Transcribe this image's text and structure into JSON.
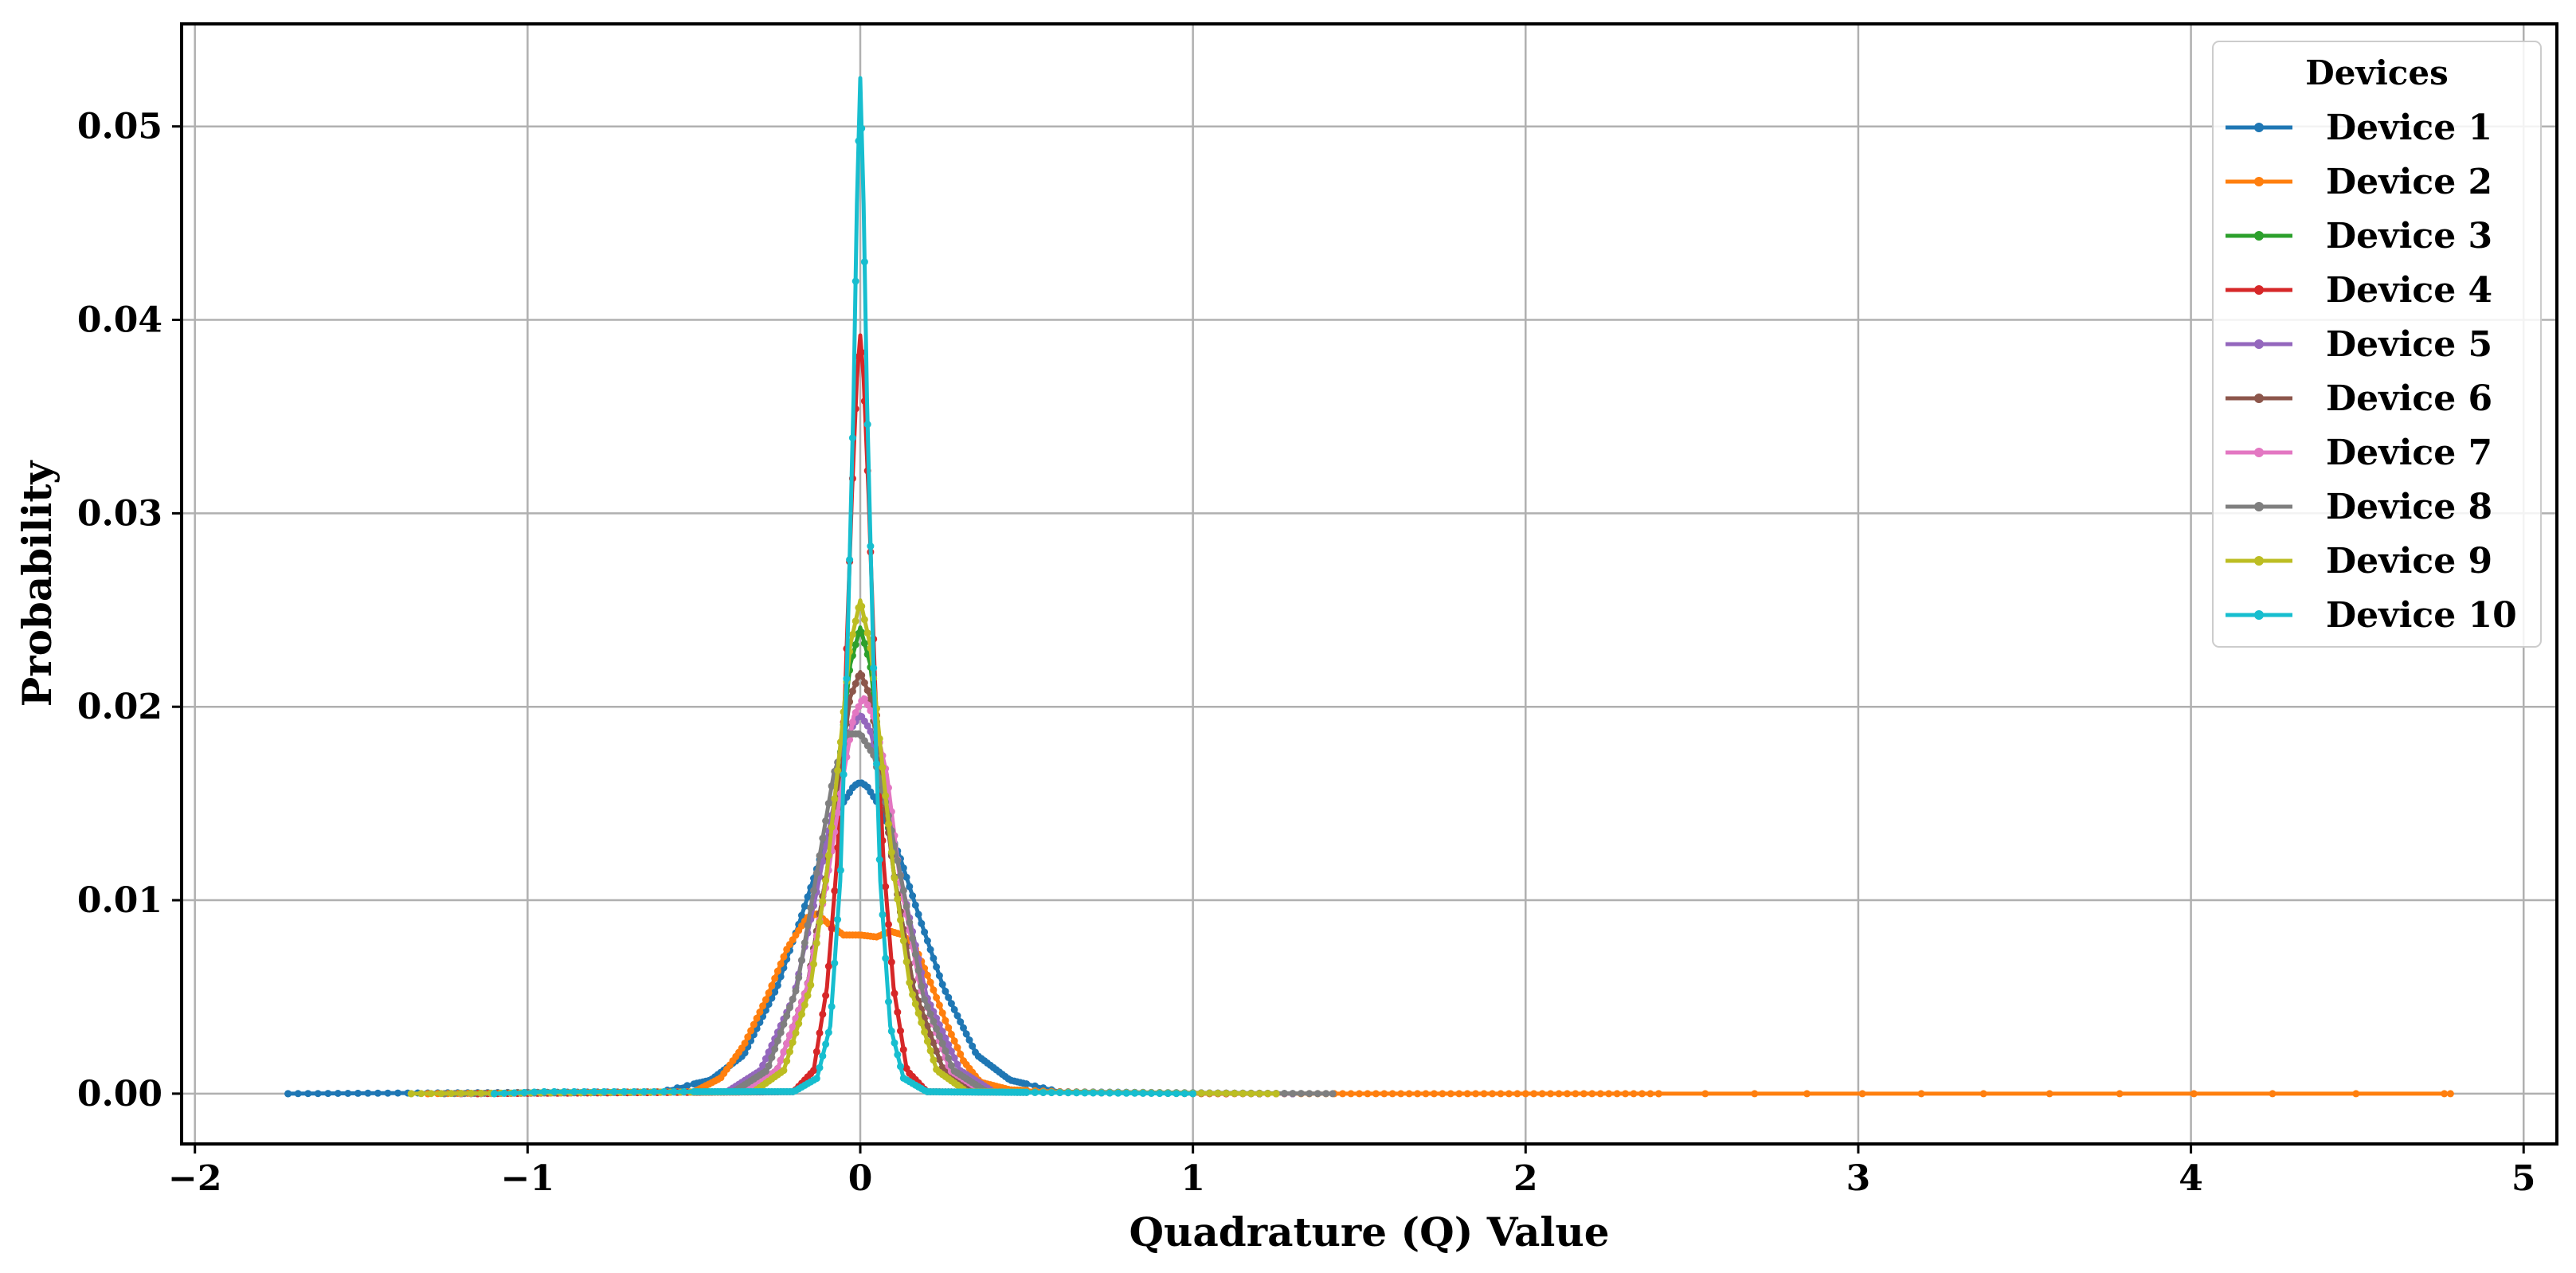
{
  "chart_data": {
    "type": "line",
    "xlabel": "Quadrature (Q) Value",
    "ylabel": "Probability",
    "xlim": [
      -2.04,
      5.1
    ],
    "ylim": [
      -0.0026,
      0.0553
    ],
    "xticks": [
      -2,
      -1,
      0,
      1,
      2,
      3,
      4,
      5
    ],
    "xtick_labels": [
      "−2",
      "−1",
      "0",
      "1",
      "2",
      "3",
      "4",
      "5"
    ],
    "yticks": [
      0.0,
      0.01,
      0.02,
      0.03,
      0.04,
      0.05
    ],
    "ytick_labels": [
      "0.00",
      "0.01",
      "0.02",
      "0.03",
      "0.04",
      "0.05"
    ],
    "grid": true,
    "legend": {
      "title": "Devices",
      "placement": "top-right"
    },
    "series": [
      {
        "name": "Device 1",
        "color": "#1f77b4",
        "x_range": [
          -1.72,
          1.3
        ],
        "points": [
          [
            -1.72,
            0
          ],
          [
            -0.6,
            0.0001
          ],
          [
            -0.45,
            0.0007
          ],
          [
            -0.35,
            0.002
          ],
          [
            -0.25,
            0.0055
          ],
          [
            -0.18,
            0.009
          ],
          [
            -0.12,
            0.0122
          ],
          [
            -0.06,
            0.0148
          ],
          [
            -0.02,
            0.0159
          ],
          [
            0,
            0.0161
          ],
          [
            0.02,
            0.0159
          ],
          [
            0.06,
            0.0148
          ],
          [
            0.12,
            0.0122
          ],
          [
            0.18,
            0.009
          ],
          [
            0.25,
            0.0055
          ],
          [
            0.35,
            0.002
          ],
          [
            0.45,
            0.0007
          ],
          [
            0.6,
            0.0001
          ],
          [
            1.3,
            0
          ]
        ]
      },
      {
        "name": "Device 2",
        "color": "#ff7f0e",
        "x_range": [
          -1.3,
          4.78
        ],
        "points": [
          [
            -1.3,
            0
          ],
          [
            -0.5,
            0.0001
          ],
          [
            -0.42,
            0.0008
          ],
          [
            -0.35,
            0.0025
          ],
          [
            -0.28,
            0.005
          ],
          [
            -0.22,
            0.0075
          ],
          [
            -0.16,
            0.0091
          ],
          [
            -0.13,
            0.0093
          ],
          [
            -0.09,
            0.0087
          ],
          [
            -0.05,
            0.0082
          ],
          [
            0,
            0.0082
          ],
          [
            0.05,
            0.0081
          ],
          [
            0.09,
            0.0084
          ],
          [
            0.13,
            0.0082
          ],
          [
            0.17,
            0.0074
          ],
          [
            0.21,
            0.0058
          ],
          [
            0.26,
            0.0036
          ],
          [
            0.31,
            0.0017
          ],
          [
            0.36,
            0.0006
          ],
          [
            0.45,
            0.0002
          ],
          [
            0.6,
            0.0001
          ],
          [
            1.0,
            0
          ],
          [
            4.78,
            0
          ]
        ]
      },
      {
        "name": "Device 3",
        "color": "#2ca02c",
        "x_range": [
          -1.2,
          1.2
        ],
        "points": [
          [
            -1.2,
            0
          ],
          [
            -0.35,
            0.0001
          ],
          [
            -0.25,
            0.0012
          ],
          [
            -0.16,
            0.0055
          ],
          [
            -0.1,
            0.0115
          ],
          [
            -0.06,
            0.0175
          ],
          [
            -0.03,
            0.0222
          ],
          [
            0,
            0.0241
          ],
          [
            0.03,
            0.0222
          ],
          [
            0.06,
            0.0175
          ],
          [
            0.1,
            0.0115
          ],
          [
            0.16,
            0.0055
          ],
          [
            0.25,
            0.0012
          ],
          [
            0.35,
            0.0001
          ],
          [
            1.2,
            0
          ]
        ]
      },
      {
        "name": "Device 4",
        "color": "#d62728",
        "x_range": [
          -1.15,
          1.1
        ],
        "points": [
          [
            -1.15,
            0
          ],
          [
            -0.2,
            0.0001
          ],
          [
            -0.14,
            0.0012
          ],
          [
            -0.1,
            0.0055
          ],
          [
            -0.07,
            0.012
          ],
          [
            -0.045,
            0.021
          ],
          [
            -0.025,
            0.031
          ],
          [
            -0.01,
            0.037
          ],
          [
            0,
            0.0392
          ],
          [
            0.01,
            0.037
          ],
          [
            0.025,
            0.031
          ],
          [
            0.045,
            0.021
          ],
          [
            0.07,
            0.012
          ],
          [
            0.1,
            0.0055
          ],
          [
            0.14,
            0.0012
          ],
          [
            0.2,
            0.0001
          ],
          [
            1.1,
            0
          ]
        ]
      },
      {
        "name": "Device 5",
        "color": "#9467bd",
        "x_range": [
          -1.2,
          1.3
        ],
        "points": [
          [
            -1.2,
            0
          ],
          [
            -0.4,
            0.0001
          ],
          [
            -0.3,
            0.0012
          ],
          [
            -0.2,
            0.005
          ],
          [
            -0.13,
            0.0105
          ],
          [
            -0.07,
            0.0158
          ],
          [
            -0.03,
            0.0188
          ],
          [
            0,
            0.0196
          ],
          [
            0.03,
            0.0188
          ],
          [
            0.07,
            0.0158
          ],
          [
            0.13,
            0.0105
          ],
          [
            0.2,
            0.005
          ],
          [
            0.3,
            0.0012
          ],
          [
            0.4,
            0.0001
          ],
          [
            1.3,
            0
          ]
        ]
      },
      {
        "name": "Device 6",
        "color": "#8c564b",
        "x_range": [
          -1.2,
          1.2
        ],
        "points": [
          [
            -1.2,
            0
          ],
          [
            -0.35,
            0.0001
          ],
          [
            -0.25,
            0.0012
          ],
          [
            -0.16,
            0.0055
          ],
          [
            -0.1,
            0.0115
          ],
          [
            -0.06,
            0.0168
          ],
          [
            -0.03,
            0.0205
          ],
          [
            0,
            0.0218
          ],
          [
            0.03,
            0.0205
          ],
          [
            0.06,
            0.0168
          ],
          [
            0.1,
            0.0115
          ],
          [
            0.16,
            0.0055
          ],
          [
            0.25,
            0.0012
          ],
          [
            0.35,
            0.0001
          ],
          [
            1.2,
            0
          ]
        ]
      },
      {
        "name": "Device 7",
        "color": "#e377c2",
        "x_range": [
          -1.2,
          1.25
        ],
        "points": [
          [
            -1.2,
            0
          ],
          [
            -0.35,
            0.0001
          ],
          [
            -0.25,
            0.0012
          ],
          [
            -0.16,
            0.0055
          ],
          [
            -0.1,
            0.011
          ],
          [
            -0.05,
            0.0165
          ],
          [
            -0.02,
            0.0195
          ],
          [
            0.01,
            0.0205
          ],
          [
            0.04,
            0.0195
          ],
          [
            0.08,
            0.0165
          ],
          [
            0.12,
            0.011
          ],
          [
            0.18,
            0.0055
          ],
          [
            0.27,
            0.0012
          ],
          [
            0.37,
            0.0001
          ],
          [
            1.25,
            0
          ]
        ]
      },
      {
        "name": "Device 8",
        "color": "#7f7f7f",
        "x_range": [
          -1.25,
          1.42
        ],
        "points": [
          [
            -1.25,
            0
          ],
          [
            -0.38,
            0.0001
          ],
          [
            -0.28,
            0.0012
          ],
          [
            -0.19,
            0.0055
          ],
          [
            -0.13,
            0.0115
          ],
          [
            -0.08,
            0.0165
          ],
          [
            -0.04,
            0.0186
          ],
          [
            0,
            0.0186
          ],
          [
            0.04,
            0.0175
          ],
          [
            0.08,
            0.0148
          ],
          [
            0.13,
            0.0105
          ],
          [
            0.19,
            0.005
          ],
          [
            0.28,
            0.0012
          ],
          [
            0.38,
            0.0001
          ],
          [
            1.42,
            0
          ]
        ]
      },
      {
        "name": "Device 9",
        "color": "#bcbd22",
        "x_range": [
          -1.35,
          1.25
        ],
        "points": [
          [
            -1.35,
            0
          ],
          [
            -0.32,
            0.0001
          ],
          [
            -0.23,
            0.0012
          ],
          [
            -0.15,
            0.0055
          ],
          [
            -0.1,
            0.0115
          ],
          [
            -0.06,
            0.018
          ],
          [
            -0.03,
            0.0232
          ],
          [
            0,
            0.0255
          ],
          [
            0.03,
            0.0232
          ],
          [
            0.06,
            0.018
          ],
          [
            0.1,
            0.0115
          ],
          [
            0.15,
            0.0055
          ],
          [
            0.23,
            0.0012
          ],
          [
            0.32,
            0.0001
          ],
          [
            1.25,
            0
          ]
        ]
      },
      {
        "name": "Device 10",
        "color": "#17becf",
        "x_range": [
          -1.1,
          1.0
        ],
        "points": [
          [
            -1.1,
            0
          ],
          [
            -0.95,
            0.0001
          ],
          [
            -0.75,
            0.0001
          ],
          [
            -0.55,
            0.0001
          ],
          [
            -0.2,
            0.0001
          ],
          [
            -0.13,
            0.0008
          ],
          [
            -0.09,
            0.0035
          ],
          [
            -0.06,
            0.011
          ],
          [
            -0.04,
            0.022
          ],
          [
            -0.02,
            0.036
          ],
          [
            -0.01,
            0.046
          ],
          [
            0,
            0.0525
          ],
          [
            0.01,
            0.046
          ],
          [
            0.02,
            0.036
          ],
          [
            0.04,
            0.022
          ],
          [
            0.06,
            0.011
          ],
          [
            0.09,
            0.0035
          ],
          [
            0.13,
            0.0008
          ],
          [
            0.2,
            0.0001
          ],
          [
            1.0,
            0
          ]
        ]
      }
    ]
  }
}
